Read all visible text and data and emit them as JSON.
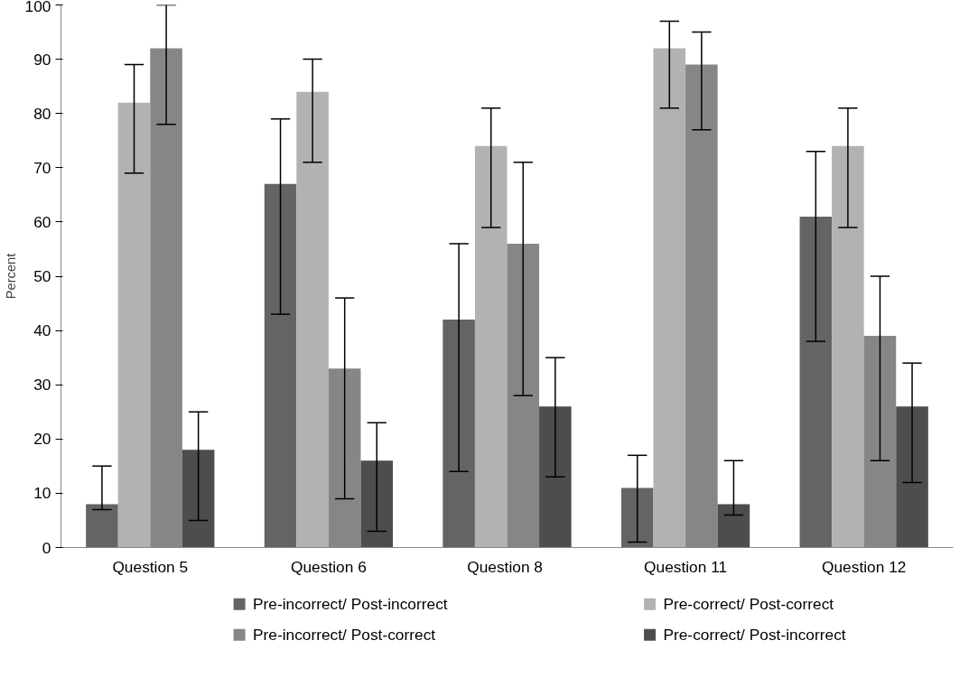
{
  "chart_data": {
    "type": "bar",
    "ylabel": "Percent",
    "categories": [
      "Question 5",
      "Question 6",
      "Question  8",
      "Question 11",
      "Question 12"
    ],
    "ylim": [
      0,
      100
    ],
    "yticks": [
      0,
      10,
      20,
      30,
      40,
      50,
      60,
      70,
      80,
      90,
      100
    ],
    "grid": false,
    "legend": "bottom",
    "series": [
      {
        "name": "Pre-incorrect/ Post-incorrect",
        "color": "#646464",
        "values": [
          8,
          67,
          42,
          11,
          61
        ],
        "errors": [
          [
            7,
            15
          ],
          [
            43,
            79
          ],
          [
            14,
            56
          ],
          [
            1,
            17
          ],
          [
            38,
            73
          ]
        ]
      },
      {
        "name": "Pre-correct/ Post-correct",
        "color": "#b2b2b2",
        "values": [
          82,
          84,
          74,
          92,
          74
        ],
        "errors": [
          [
            69,
            89
          ],
          [
            71,
            90
          ],
          [
            59,
            81
          ],
          [
            81,
            97
          ],
          [
            59,
            81
          ]
        ]
      },
      {
        "name": "Pre-incorrect/ Post-correct",
        "color": "#868686",
        "values": [
          92,
          33,
          56,
          89,
          39
        ],
        "errors": [
          [
            78,
            100
          ],
          [
            9,
            46
          ],
          [
            28,
            71
          ],
          [
            77,
            95
          ],
          [
            16,
            50
          ]
        ]
      },
      {
        "name": "Pre-correct/ Post-incorrect",
        "color": "#4d4d4d",
        "values": [
          18,
          16,
          26,
          8,
          26
        ],
        "errors": [
          [
            5,
            25
          ],
          [
            3,
            23
          ],
          [
            13,
            35
          ],
          [
            6,
            16
          ],
          [
            12,
            34
          ]
        ]
      }
    ]
  }
}
